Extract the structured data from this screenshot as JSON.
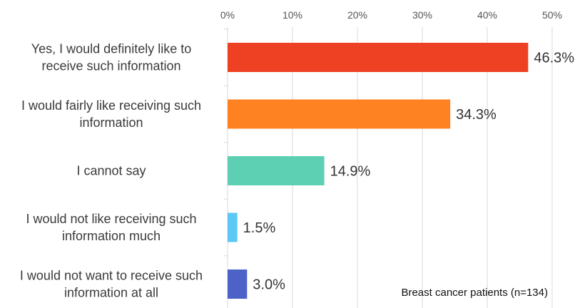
{
  "chart_data": {
    "type": "bar",
    "orientation": "horizontal",
    "categories": [
      [
        "Yes, I would definitely like to",
        "receive such information"
      ],
      [
        "I would fairly like receiving such",
        "information"
      ],
      [
        "I cannot say"
      ],
      [
        "I would not like receiving such",
        "information much"
      ],
      [
        "I would not want to receive such",
        "information at all"
      ]
    ],
    "values": [
      46.3,
      34.3,
      14.9,
      1.5,
      3.0
    ],
    "value_labels": [
      "46.3%",
      "34.3%",
      "14.9%",
      "1.5%",
      "3.0%"
    ],
    "colors": [
      "#EE4023",
      "#FF8222",
      "#5DD0B3",
      "#5BC8F5",
      "#4C62C7"
    ],
    "xlim": [
      0,
      50
    ],
    "x_ticks": [
      0,
      10,
      20,
      30,
      40,
      50
    ],
    "x_tick_labels": [
      "0%",
      "10%",
      "20%",
      "30%",
      "40%",
      "50%"
    ],
    "x_axis_position": "top",
    "grid": true,
    "annotation": "Breast cancer patients (n=134)",
    "title": "",
    "xlabel": "",
    "ylabel": ""
  }
}
